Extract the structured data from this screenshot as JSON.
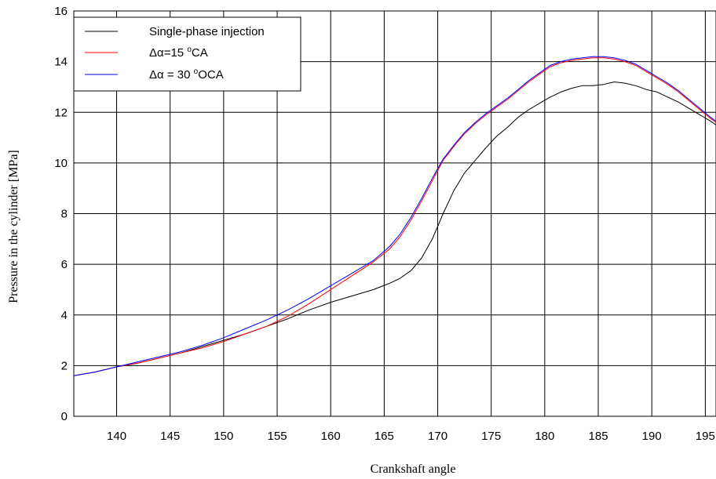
{
  "chart_data": {
    "type": "line",
    "xlabel": "Crankshaft angle",
    "ylabel": "Pressure in the cylinder [MPa]",
    "xlim": [
      136,
      196
    ],
    "ylim": [
      0,
      16
    ],
    "x_ticks": [
      "140",
      "145",
      "150",
      "155",
      "160",
      "165",
      "170",
      "175",
      "180",
      "185",
      "190",
      "195"
    ],
    "y_ticks": [
      "0",
      "2",
      "4",
      "6",
      "8",
      "10",
      "12",
      "14",
      "16"
    ],
    "grid": true,
    "legend_position": "top-left",
    "legend": [
      {
        "label": "Single-phase injection",
        "color": "#000000"
      },
      {
        "label_main": "Δα=15 ",
        "label_sup": "o",
        "label_tail": "CA",
        "color": "#ff0000"
      },
      {
        "label_main": "Δα = 30 ",
        "label_sup": "o",
        "label_tail": "OCA",
        "color": "#0000ff"
      }
    ],
    "series": [
      {
        "name": "Single-phase injection",
        "color": "#000000",
        "points": [
          [
            136,
            1.6
          ],
          [
            138,
            1.75
          ],
          [
            140,
            1.95
          ],
          [
            142,
            2.1
          ],
          [
            144,
            2.3
          ],
          [
            146,
            2.5
          ],
          [
            148,
            2.75
          ],
          [
            150,
            3.0
          ],
          [
            152,
            3.25
          ],
          [
            154,
            3.55
          ],
          [
            156,
            3.85
          ],
          [
            158,
            4.2
          ],
          [
            160,
            4.5
          ],
          [
            162,
            4.75
          ],
          [
            164,
            5.0
          ],
          [
            165.5,
            5.25
          ],
          [
            166.5,
            5.45
          ],
          [
            167.5,
            5.75
          ],
          [
            168.5,
            6.25
          ],
          [
            169.5,
            7.0
          ],
          [
            170.5,
            8.0
          ],
          [
            171.5,
            8.9
          ],
          [
            172.5,
            9.6
          ],
          [
            173.5,
            10.1
          ],
          [
            174.5,
            10.6
          ],
          [
            175.5,
            11.05
          ],
          [
            176.5,
            11.4
          ],
          [
            177.5,
            11.8
          ],
          [
            178.5,
            12.1
          ],
          [
            179.5,
            12.35
          ],
          [
            180.5,
            12.6
          ],
          [
            181.5,
            12.8
          ],
          [
            182.5,
            12.95
          ],
          [
            183.5,
            13.05
          ],
          [
            184.5,
            13.05
          ],
          [
            185.5,
            13.1
          ],
          [
            186.5,
            13.2
          ],
          [
            187.5,
            13.15
          ],
          [
            188.5,
            13.05
          ],
          [
            189.5,
            12.9
          ],
          [
            190.5,
            12.8
          ],
          [
            191.5,
            12.6
          ],
          [
            192.5,
            12.4
          ],
          [
            193.5,
            12.15
          ],
          [
            194.5,
            11.9
          ],
          [
            195.5,
            11.65
          ],
          [
            196,
            11.5
          ]
        ]
      },
      {
        "name": "Δα=15 °CA",
        "color": "#ff0000",
        "points": [
          [
            136,
            1.6
          ],
          [
            138,
            1.75
          ],
          [
            140,
            1.95
          ],
          [
            142,
            2.1
          ],
          [
            144,
            2.3
          ],
          [
            146,
            2.5
          ],
          [
            148,
            2.7
          ],
          [
            150,
            2.95
          ],
          [
            152,
            3.25
          ],
          [
            154,
            3.55
          ],
          [
            156,
            3.95
          ],
          [
            158,
            4.45
          ],
          [
            160,
            5.0
          ],
          [
            162,
            5.55
          ],
          [
            164,
            6.1
          ],
          [
            165.5,
            6.6
          ],
          [
            166.5,
            7.1
          ],
          [
            167.5,
            7.75
          ],
          [
            168.5,
            8.5
          ],
          [
            169.5,
            9.3
          ],
          [
            170.5,
            10.1
          ],
          [
            171.5,
            10.65
          ],
          [
            172.5,
            11.15
          ],
          [
            173.5,
            11.55
          ],
          [
            174.5,
            11.9
          ],
          [
            175.5,
            12.2
          ],
          [
            176.5,
            12.5
          ],
          [
            177.5,
            12.85
          ],
          [
            178.5,
            13.2
          ],
          [
            179.5,
            13.5
          ],
          [
            180.5,
            13.8
          ],
          [
            181.5,
            13.95
          ],
          [
            182.5,
            14.05
          ],
          [
            183.5,
            14.1
          ],
          [
            184.5,
            14.15
          ],
          [
            185.5,
            14.15
          ],
          [
            186.5,
            14.1
          ],
          [
            187.5,
            14.0
          ],
          [
            188.5,
            13.85
          ],
          [
            189.5,
            13.6
          ],
          [
            190.5,
            13.35
          ],
          [
            191.5,
            13.1
          ],
          [
            192.5,
            12.8
          ],
          [
            193.5,
            12.45
          ],
          [
            194.5,
            12.1
          ],
          [
            195.5,
            11.75
          ],
          [
            196,
            11.6
          ]
        ]
      },
      {
        "name": "Δα = 30 °OCA",
        "color": "#0000ff",
        "points": [
          [
            136,
            1.6
          ],
          [
            138,
            1.75
          ],
          [
            140,
            1.95
          ],
          [
            142,
            2.15
          ],
          [
            144,
            2.35
          ],
          [
            146,
            2.55
          ],
          [
            148,
            2.8
          ],
          [
            150,
            3.1
          ],
          [
            152,
            3.45
          ],
          [
            154,
            3.8
          ],
          [
            156,
            4.2
          ],
          [
            158,
            4.65
          ],
          [
            160,
            5.15
          ],
          [
            162,
            5.65
          ],
          [
            164,
            6.15
          ],
          [
            165.5,
            6.7
          ],
          [
            166.5,
            7.2
          ],
          [
            167.5,
            7.85
          ],
          [
            168.5,
            8.6
          ],
          [
            169.5,
            9.4
          ],
          [
            170.5,
            10.15
          ],
          [
            171.5,
            10.7
          ],
          [
            172.5,
            11.2
          ],
          [
            173.5,
            11.6
          ],
          [
            174.5,
            11.95
          ],
          [
            175.5,
            12.25
          ],
          [
            176.5,
            12.55
          ],
          [
            177.5,
            12.9
          ],
          [
            178.5,
            13.25
          ],
          [
            179.5,
            13.55
          ],
          [
            180.5,
            13.85
          ],
          [
            181.5,
            14.0
          ],
          [
            182.5,
            14.1
          ],
          [
            183.5,
            14.15
          ],
          [
            184.5,
            14.2
          ],
          [
            185.5,
            14.2
          ],
          [
            186.5,
            14.15
          ],
          [
            187.5,
            14.05
          ],
          [
            188.5,
            13.9
          ],
          [
            189.5,
            13.65
          ],
          [
            190.5,
            13.4
          ],
          [
            191.5,
            13.15
          ],
          [
            192.5,
            12.85
          ],
          [
            193.5,
            12.5
          ],
          [
            194.5,
            12.15
          ],
          [
            195.5,
            11.8
          ],
          [
            196,
            11.65
          ]
        ]
      }
    ]
  }
}
